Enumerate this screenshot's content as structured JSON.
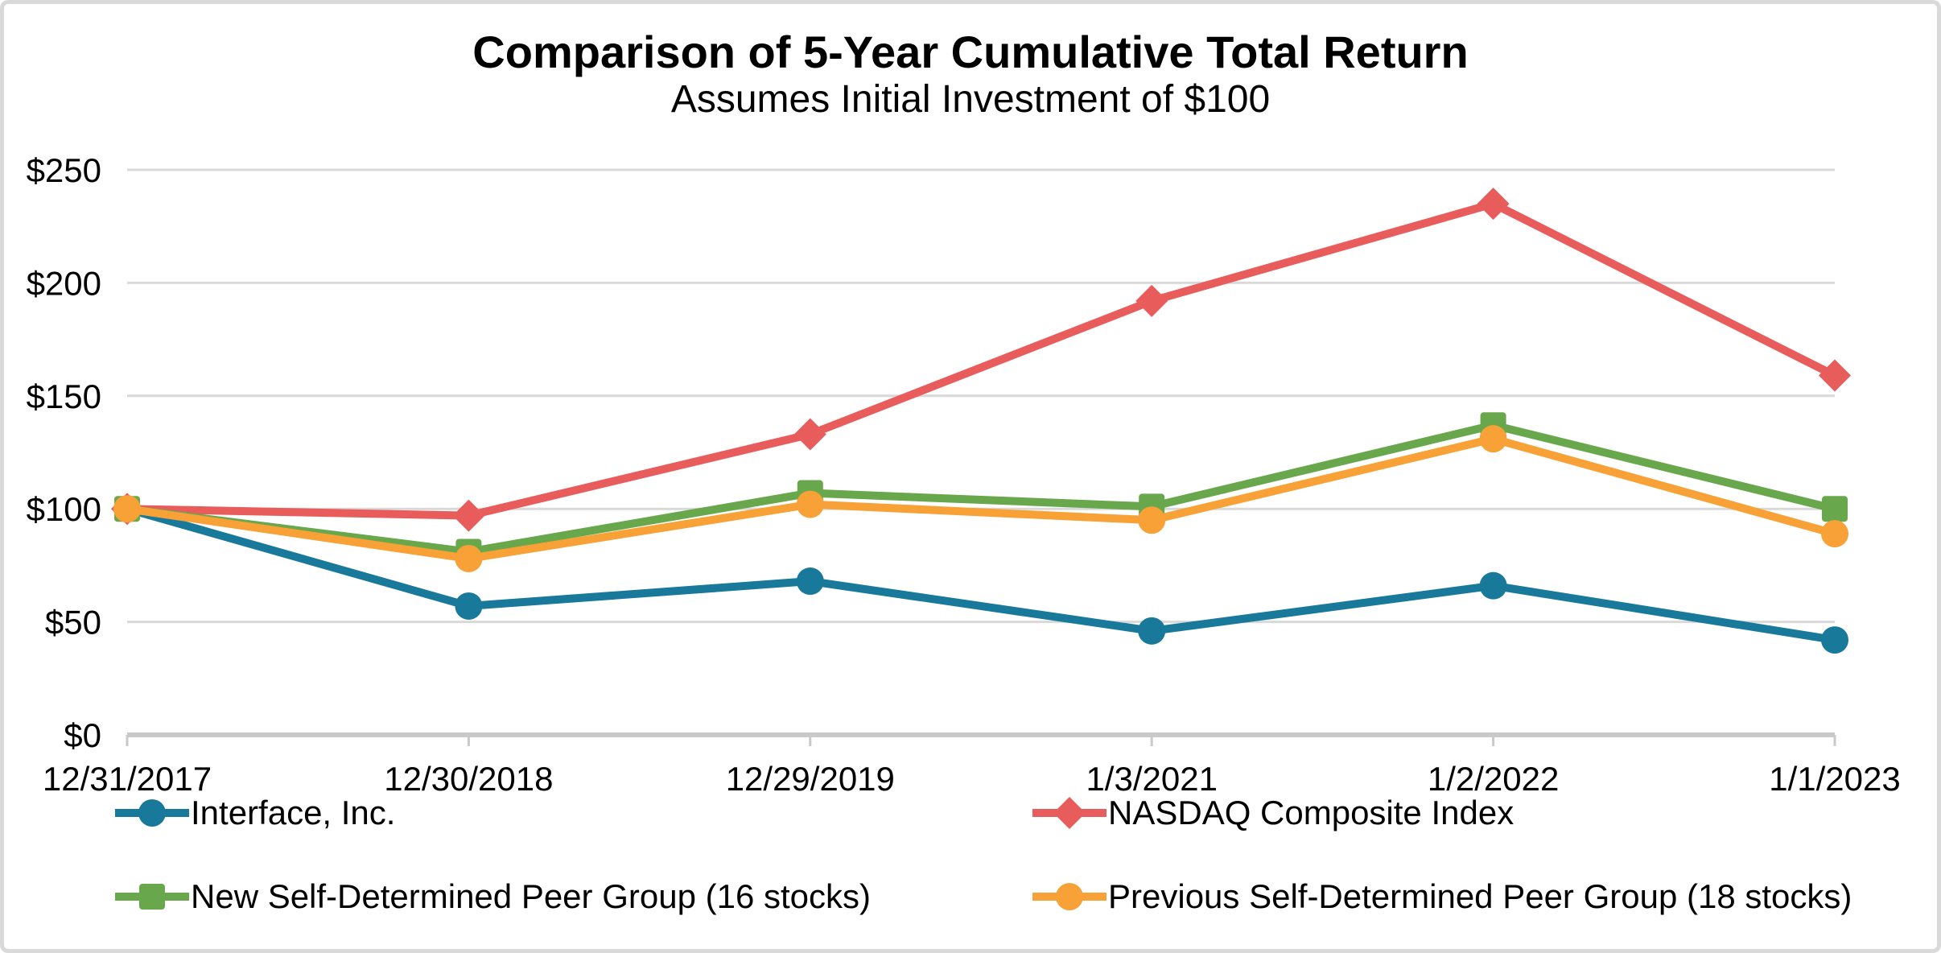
{
  "chart": {
    "title": "Comparison of 5-Year Cumulative Total Return",
    "subtitle": "Assumes Initial Investment of $100"
  },
  "chart_data": {
    "type": "line",
    "title": "Comparison of 5-Year Cumulative Total Return",
    "subtitle": "Assumes Initial Investment of $100",
    "categories": [
      "12/31/2017",
      "12/30/2018",
      "12/29/2019",
      "1/3/2021",
      "1/2/2022",
      "1/1/2023"
    ],
    "series": [
      {
        "name": "Interface, Inc.",
        "marker": "circle",
        "color": "#19799B",
        "values": [
          100,
          57,
          68,
          46,
          66,
          42
        ]
      },
      {
        "name": "NASDAQ Composite Index",
        "marker": "diamond",
        "color": "#E85C5C",
        "values": [
          100,
          97,
          133,
          192,
          235,
          159
        ]
      },
      {
        "name": "New Self-Determined Peer Group (16 stocks)",
        "marker": "square",
        "color": "#69A74C",
        "values": [
          100,
          81,
          107,
          101,
          137,
          100
        ]
      },
      {
        "name": "Previous Self-Determined Peer Group (18 stocks)",
        "marker": "circle",
        "color": "#F7A136",
        "values": [
          100,
          78,
          102,
          95,
          131,
          89
        ]
      }
    ],
    "y_ticks": [
      {
        "label": "$250",
        "value": 250
      },
      {
        "label": "$200",
        "value": 200
      },
      {
        "label": "$150",
        "value": 150
      },
      {
        "label": "$100",
        "value": 100
      },
      {
        "label": "$50",
        "value": 50
      },
      {
        "label": "$0",
        "value": 0
      }
    ],
    "ylim": [
      0,
      250
    ],
    "grid": true,
    "grid_color": "#d9d9d9",
    "axis_color": "#c9c9c9",
    "text_color": "#000000",
    "legend_position": "bottom"
  }
}
